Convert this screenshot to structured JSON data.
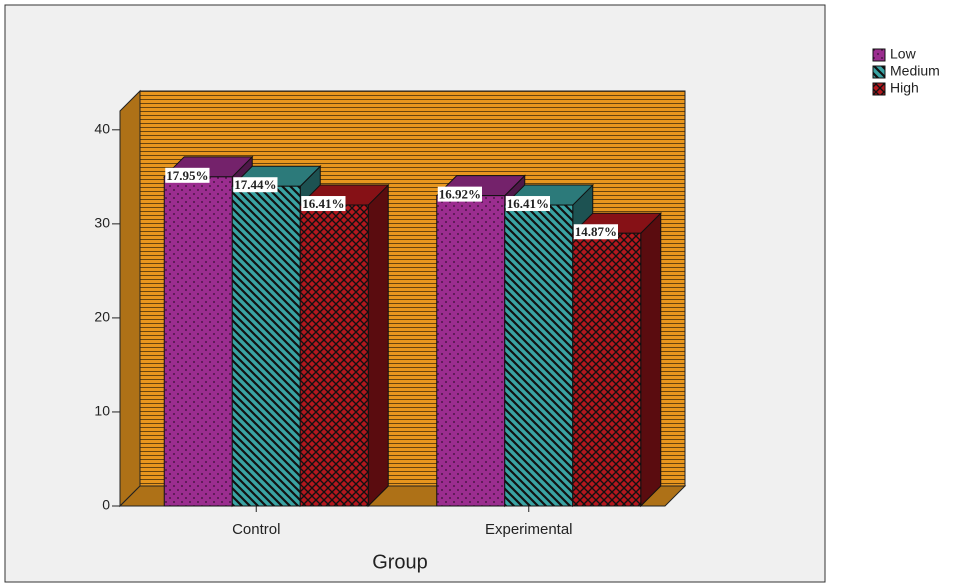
{
  "chart_data": {
    "type": "bar3d",
    "x_label": "Group",
    "categories": [
      "Control",
      "Experimental"
    ],
    "series": [
      {
        "name": "Low",
        "color": "#9b2d8f",
        "values": [
          35,
          33
        ],
        "value_labels": [
          "17.95%",
          "16.92%"
        ]
      },
      {
        "name": "Medium",
        "color": "#3aa3a3",
        "values": [
          34,
          32
        ],
        "value_labels": [
          "17.44%",
          "16.41%"
        ]
      },
      {
        "name": "High",
        "color": "#b3171d",
        "values": [
          32,
          29
        ],
        "value_labels": [
          "16.41%",
          "14.87%"
        ]
      }
    ],
    "ylim": [
      0,
      42
    ],
    "yticks": [
      0,
      10,
      20,
      30,
      40
    ],
    "wall_color": "#e8961e",
    "legend": "right"
  }
}
